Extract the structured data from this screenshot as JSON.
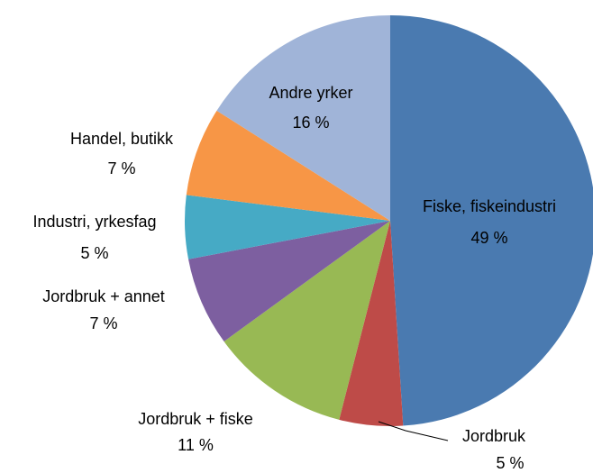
{
  "chart_data": {
    "type": "pie",
    "categories": [
      "Fiske, fiskeindustri",
      "Jordbruk",
      "Jordbruk + fiske",
      "Jordbruk + annet",
      "Industri, yrkesfag",
      "Handel, butikk",
      "Andre yrker"
    ],
    "values": [
      49,
      5,
      11,
      7,
      5,
      7,
      16
    ],
    "value_labels": [
      "49 %",
      "5 %",
      "11 %",
      "7 %",
      "5 %",
      "7 %",
      "16 %"
    ],
    "colors": [
      "#4a7ab0",
      "#be4b48",
      "#98b954",
      "#7d5fa0",
      "#46aac5",
      "#f79646",
      "#a0b4d8"
    ]
  }
}
